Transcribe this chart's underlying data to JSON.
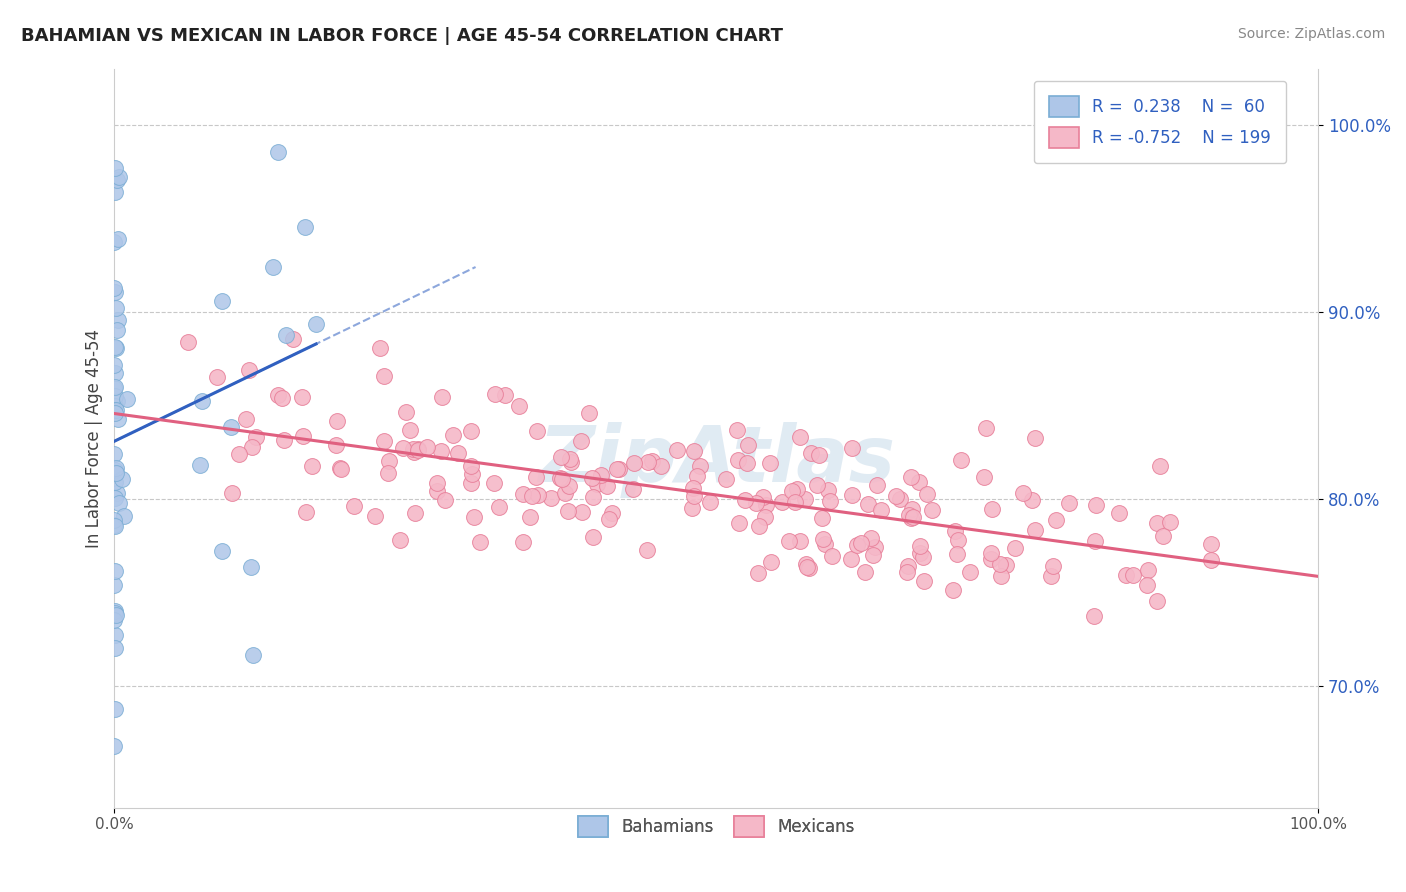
{
  "title": "BAHAMIAN VS MEXICAN IN LABOR FORCE | AGE 45-54 CORRELATION CHART",
  "source": "Source: ZipAtlas.com",
  "ylabel": "In Labor Force | Age 45-54",
  "y_ticks": [
    0.7,
    0.8,
    0.9,
    1.0
  ],
  "y_tick_labels": [
    "70.0%",
    "80.0%",
    "90.0%",
    "100.0%"
  ],
  "x_min": 0.0,
  "x_max": 1.0,
  "y_min": 0.635,
  "y_max": 1.03,
  "bahamian_color": "#aec6e8",
  "bahamian_edge": "#7aadd4",
  "mexican_color": "#f5b8c8",
  "mexican_edge": "#e8809a",
  "trend_blue": "#3060c0",
  "trend_pink": "#e06080",
  "legend_r_blue": "0.238",
  "legend_n_blue": "60",
  "legend_r_pink": "-0.752",
  "legend_n_pink": "199",
  "legend_text_color": "#3060c0",
  "watermark": "ZipAtlas",
  "background_color": "#ffffff",
  "grid_color": "#c8c8c8",
  "tick_label_color": "#3060c0"
}
